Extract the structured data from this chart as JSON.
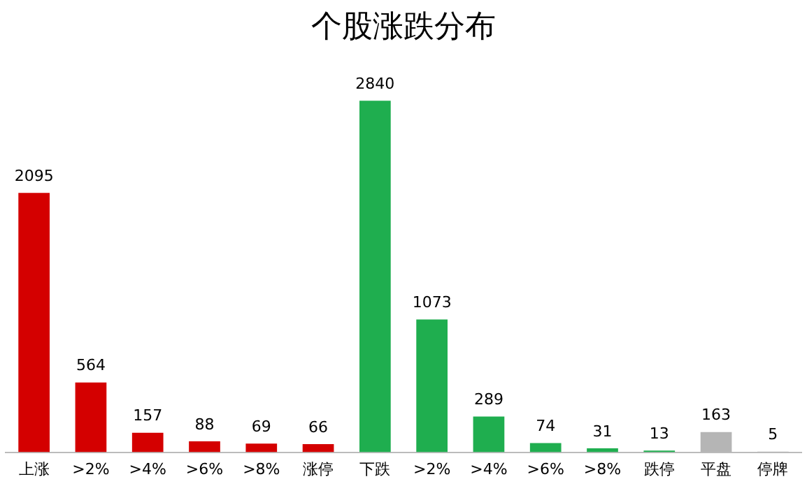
{
  "chart_data": {
    "type": "bar",
    "title": "个股涨跌分布",
    "categories": [
      "上涨",
      ">2%",
      ">4%",
      ">6%",
      ">8%",
      "涨停",
      "下跌",
      ">2%",
      ">4%",
      ">6%",
      ">8%",
      "跌停",
      "平盘",
      "停牌"
    ],
    "values": [
      2095,
      564,
      157,
      88,
      69,
      66,
      2840,
      1073,
      289,
      74,
      31,
      13,
      163,
      5
    ],
    "colors": [
      "#d40000",
      "#d40000",
      "#d40000",
      "#d40000",
      "#d40000",
      "#d40000",
      "#1fae4f",
      "#1fae4f",
      "#1fae4f",
      "#1fae4f",
      "#1fae4f",
      "#1fae4f",
      "#b5b5b5",
      "#b5b5b5"
    ],
    "data_labels": true,
    "grid": false,
    "legend": false
  }
}
